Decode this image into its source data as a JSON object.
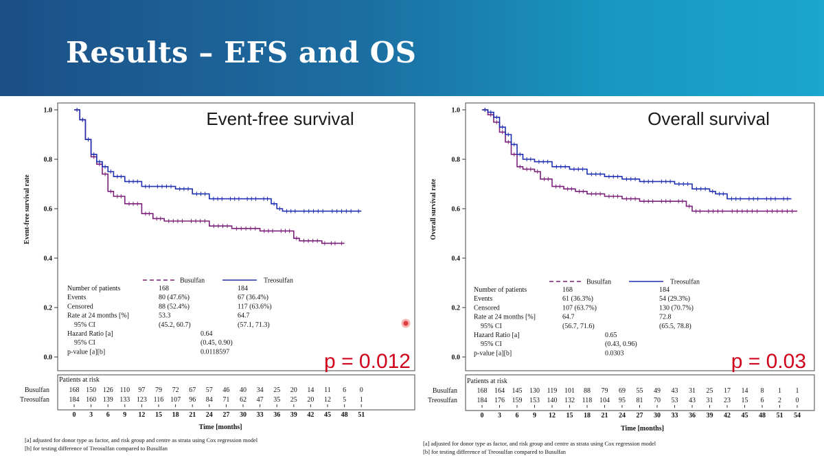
{
  "header": {
    "title": "Results – EFS and OS"
  },
  "colors": {
    "busulfan": "#7a1f7a",
    "treosulfan": "#1f2fb0",
    "pvalue": "#d0021b"
  },
  "risk_header": "Patients at risk",
  "legend": {
    "busulfan": "Busulfan",
    "treosulfan": "Treosulfan"
  },
  "table_labels": [
    "Number of patients",
    "Events",
    "Censored",
    "Rate at 24 months [%]",
    "95% CI",
    "Hazard Ratio [a]",
    "95% CI",
    "p-value [a][b]"
  ],
  "footnotes": {
    "a": "[a] adjusted for donor type as factor, and risk group and centre as strata using Cox regression model",
    "b": "[b] for testing difference of Treosulfan compared to Busulfan"
  },
  "chart_data": [
    {
      "type": "line",
      "title": "Event-free survival",
      "ylabel": "Event-free survival rate",
      "xlabel": "Time [months]",
      "ylim": [
        0,
        1
      ],
      "xlim": [
        0,
        51
      ],
      "yticks": [
        "0.0",
        "0.2",
        "0.4",
        "0.6",
        "0.8",
        "1.0"
      ],
      "xticks": [
        "0",
        "3",
        "6",
        "9",
        "12",
        "15",
        "18",
        "21",
        "24",
        "27",
        "30",
        "33",
        "36",
        "39",
        "42",
        "45",
        "48",
        "51"
      ],
      "pvalue": "p = 0.012",
      "series": [
        {
          "name": "Busulfan",
          "x": [
            0,
            1,
            2,
            3,
            4,
            5,
            6,
            7,
            9,
            12,
            14,
            16,
            20,
            24,
            28,
            33,
            36,
            39,
            40,
            44,
            45,
            47,
            48
          ],
          "y": [
            1.0,
            0.96,
            0.88,
            0.81,
            0.78,
            0.74,
            0.67,
            0.65,
            0.62,
            0.58,
            0.56,
            0.55,
            0.55,
            0.53,
            0.52,
            0.51,
            0.51,
            0.48,
            0.47,
            0.46,
            0.46,
            0.46,
            0.46
          ]
        },
        {
          "name": "Treosulfan",
          "x": [
            0,
            1,
            2,
            3,
            4,
            5,
            6,
            7,
            9,
            12,
            14,
            18,
            21,
            24,
            27,
            30,
            33,
            35,
            36,
            37,
            40,
            45,
            50,
            51
          ],
          "y": [
            1.0,
            0.96,
            0.88,
            0.82,
            0.79,
            0.77,
            0.75,
            0.73,
            0.71,
            0.69,
            0.69,
            0.68,
            0.66,
            0.64,
            0.64,
            0.64,
            0.64,
            0.62,
            0.6,
            0.59,
            0.59,
            0.59,
            0.59,
            0.59
          ]
        }
      ],
      "table": {
        "busulfan": [
          "168",
          "80 (47.6%)",
          "88 (52.4%)",
          "53.3",
          "(45.2, 60.7)"
        ],
        "treosulfan": [
          "184",
          "67 (36.4%)",
          "117 (63.6%)",
          "64.7",
          "(57.1, 71.3)"
        ],
        "hazard_ratio": "0.64",
        "hr_ci": "(0.45, 0.90)",
        "p_value": "0.0118597"
      },
      "at_risk": {
        "Busulfan": [
          "168",
          "150",
          "126",
          "110",
          "97",
          "79",
          "72",
          "67",
          "57",
          "46",
          "40",
          "34",
          "25",
          "20",
          "14",
          "11",
          "6",
          "0"
        ],
        "Treosulfan": [
          "184",
          "160",
          "139",
          "133",
          "123",
          "116",
          "107",
          "96",
          "84",
          "71",
          "62",
          "47",
          "35",
          "25",
          "20",
          "12",
          "5",
          "1"
        ]
      }
    },
    {
      "type": "line",
      "title": "Overall survival",
      "ylabel": "Overall survival rate",
      "xlabel": "Time [months]",
      "ylim": [
        0,
        1
      ],
      "xlim": [
        0,
        54
      ],
      "yticks": [
        "0.0",
        "0.2",
        "0.4",
        "0.6",
        "0.8",
        "1.0"
      ],
      "xticks": [
        "0",
        "3",
        "6",
        "9",
        "12",
        "15",
        "18",
        "21",
        "24",
        "27",
        "30",
        "33",
        "36",
        "39",
        "42",
        "45",
        "48",
        "51",
        "54"
      ],
      "pvalue": "p = 0.03",
      "series": [
        {
          "name": "Busulfan",
          "x": [
            0,
            1,
            2,
            3,
            4,
            5,
            6,
            7,
            9,
            10,
            12,
            14,
            16,
            18,
            21,
            24,
            27,
            30,
            33,
            35,
            36,
            38,
            42,
            48,
            54
          ],
          "y": [
            1.0,
            0.98,
            0.95,
            0.91,
            0.87,
            0.82,
            0.77,
            0.76,
            0.75,
            0.72,
            0.69,
            0.68,
            0.67,
            0.66,
            0.65,
            0.64,
            0.63,
            0.63,
            0.63,
            0.61,
            0.59,
            0.59,
            0.59,
            0.59,
            0.59
          ]
        },
        {
          "name": "Treosulfan",
          "x": [
            0,
            1,
            2,
            3,
            4,
            5,
            6,
            7,
            9,
            12,
            15,
            18,
            21,
            24,
            27,
            30,
            33,
            36,
            39,
            40,
            42,
            45,
            48,
            51,
            53
          ],
          "y": [
            1.0,
            0.99,
            0.97,
            0.93,
            0.9,
            0.86,
            0.82,
            0.8,
            0.79,
            0.77,
            0.76,
            0.74,
            0.73,
            0.72,
            0.71,
            0.71,
            0.7,
            0.68,
            0.67,
            0.66,
            0.64,
            0.64,
            0.64,
            0.64,
            0.64
          ]
        }
      ],
      "table": {
        "busulfan": [
          "168",
          "61 (36.3%)",
          "107 (63.7%)",
          "64.7",
          "(56.7, 71.6)"
        ],
        "treosulfan": [
          "184",
          "54 (29.3%)",
          "130 (70.7%)",
          "72.8",
          "(65.5, 78.8)"
        ],
        "hazard_ratio": "0.65",
        "hr_ci": "(0.43, 0.96)",
        "p_value": "0.0303"
      },
      "at_risk": {
        "Busulfan": [
          "168",
          "164",
          "145",
          "130",
          "119",
          "101",
          "88",
          "79",
          "69",
          "55",
          "49",
          "43",
          "31",
          "25",
          "17",
          "14",
          "8",
          "1",
          "1"
        ],
        "Treosulfan": [
          "184",
          "176",
          "159",
          "153",
          "140",
          "132",
          "118",
          "104",
          "95",
          "81",
          "70",
          "53",
          "43",
          "31",
          "23",
          "15",
          "6",
          "2",
          "0"
        ]
      }
    }
  ]
}
